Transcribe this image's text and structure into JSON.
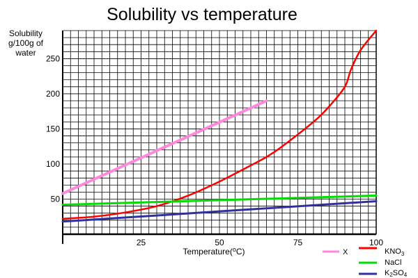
{
  "chart_data": {
    "type": "line",
    "title": "Solubility vs temperature",
    "ylabel_lines": [
      "Solubility",
      "g/100g of",
      "water"
    ],
    "xlabel_prefix": "Temperature(",
    "xlabel_degree": "o",
    "xlabel_suffix": "C)",
    "xlim": [
      0,
      100
    ],
    "ylim": [
      0,
      290
    ],
    "x_ticks": [
      25,
      50,
      75,
      100
    ],
    "y_ticks": [
      50,
      100,
      150,
      200,
      250
    ],
    "grid": true,
    "legend_position": "bottom-right",
    "series": [
      {
        "name": "X",
        "color": "#ff88dd",
        "x": [
          0,
          65
        ],
        "y": [
          58,
          190
        ]
      },
      {
        "name": "KNO",
        "name_sub": "3",
        "color": "#ff0000",
        "x": [
          0,
          10,
          20,
          30,
          40,
          50,
          60,
          65,
          70,
          80,
          85,
          90,
          92,
          95,
          100
        ],
        "y": [
          22,
          25,
          31,
          40,
          55,
          75,
          98,
          110,
          125,
          160,
          182,
          210,
          235,
          262,
          290
        ]
      },
      {
        "name": "NaCl",
        "color": "#00dd00",
        "x": [
          0,
          100
        ],
        "y": [
          42,
          55
        ]
      },
      {
        "name": "K",
        "name_sub": "2",
        "name_suffix": "SO",
        "name_sub2": "4",
        "color": "#3030a0",
        "x": [
          0,
          100
        ],
        "y": [
          18,
          47
        ]
      }
    ]
  }
}
